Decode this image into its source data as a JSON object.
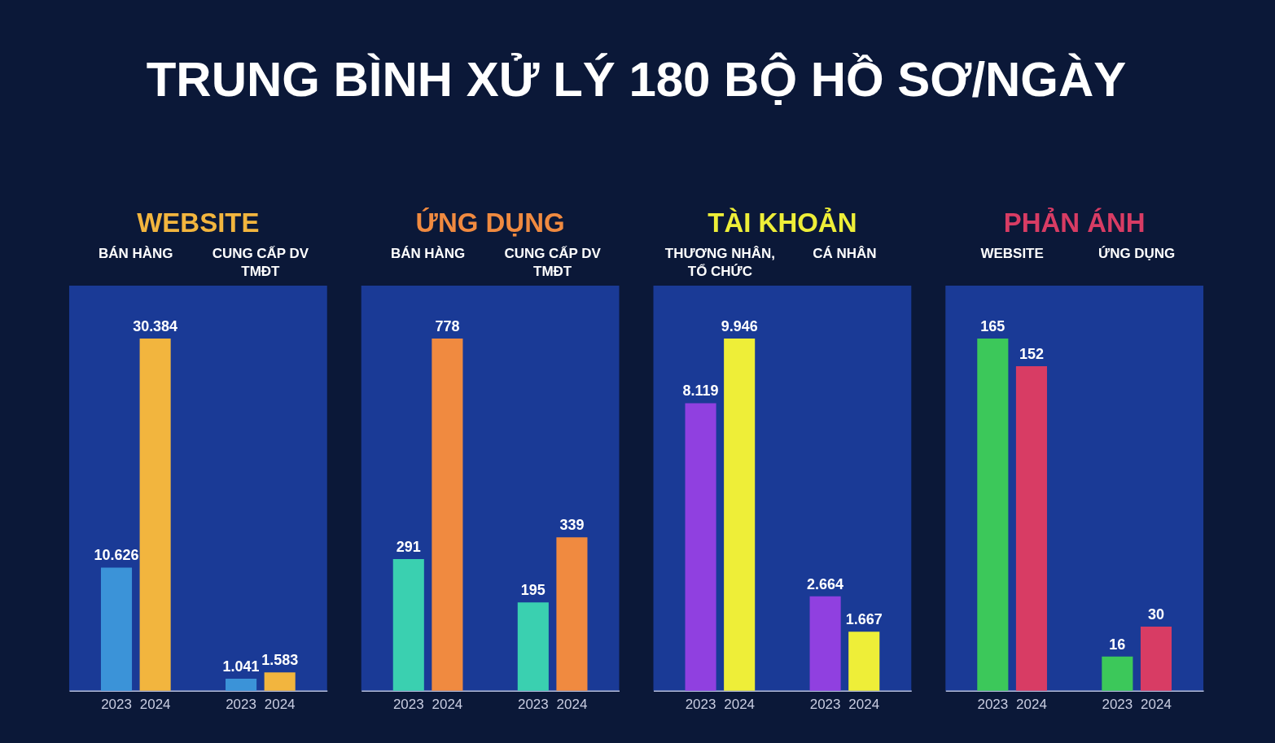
{
  "chart_data": [
    {
      "type": "other",
      "title": "TRUNG BÌNH XỬ LÝ 180 BỘ HỒ SƠ/NGÀY"
    },
    {
      "type": "bar",
      "title": "WEBSITE",
      "categories": [
        "BÁN HÀNG",
        "CUNG CẤP DV TMĐT"
      ],
      "series": [
        {
          "name": "2023",
          "color": "#3b93d8",
          "values": [
            10626,
            1041
          ],
          "value_labels": [
            "10.626",
            "1.041"
          ]
        },
        {
          "name": "2024",
          "color": "#f2b53e",
          "values": [
            30384,
            1583
          ],
          "value_labels": [
            "30.384",
            "1.583"
          ]
        }
      ],
      "tick_labels": "x"
    },
    {
      "type": "bar",
      "title": "ỨNG DỤNG",
      "categories": [
        "BÁN HÀNG",
        "CUNG CẤP DV TMĐT"
      ],
      "series": [
        {
          "name": "2023",
          "color": "#3ad0b0",
          "values": [
            291,
            195
          ],
          "value_labels": [
            "291",
            "195"
          ]
        },
        {
          "name": "2024",
          "color": "#f08a40",
          "values": [
            778,
            339
          ],
          "value_labels": [
            "778",
            "339"
          ]
        }
      ],
      "tick_labels": "x"
    },
    {
      "type": "bar",
      "title": "TÀI KHOẢN",
      "categories": [
        "THƯƠNG NHÂN, TỔ CHỨC",
        "CÁ NHÂN"
      ],
      "series": [
        {
          "name": "2023",
          "color": "#9040e0",
          "values": [
            8119,
            2664
          ],
          "value_labels": [
            "8.119",
            "2.664"
          ]
        },
        {
          "name": "2024",
          "color": "#eeee38",
          "values": [
            9946,
            1667
          ],
          "value_labels": [
            "9.946",
            "1.667"
          ]
        }
      ],
      "tick_labels": "x"
    },
    {
      "type": "bar",
      "title": "PHẢN ÁNH",
      "categories": [
        "WEBSITE",
        "ỨNG DỤNG"
      ],
      "series": [
        {
          "name": "2023",
          "color": "#3cc85a",
          "values": [
            165,
            16
          ],
          "value_labels": [
            "165",
            "16"
          ]
        },
        {
          "name": "2024",
          "color": "#d83c64",
          "values": [
            152,
            30
          ],
          "value_labels": [
            "152",
            "30"
          ]
        }
      ],
      "tick_labels": "x"
    }
  ]
}
